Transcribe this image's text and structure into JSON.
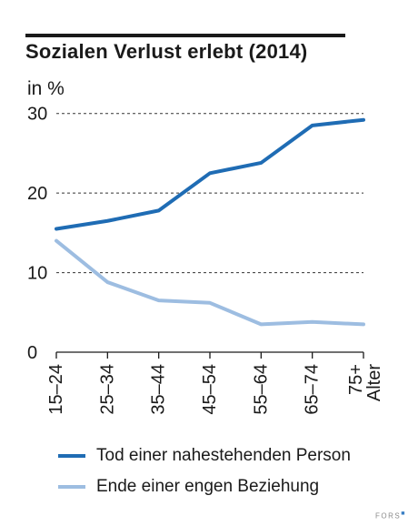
{
  "chart_data": {
    "type": "line",
    "title": "Sozialen Verlust erlebt (2014)",
    "unit_label": "in %",
    "categories": [
      "15–24",
      "25–34",
      "35–44",
      "45–54",
      "55–64",
      "65–74",
      "75+"
    ],
    "x_axis_extra_label": "Alter",
    "y_ticks": [
      0,
      10,
      20,
      30
    ],
    "ylim": [
      0,
      31
    ],
    "grid": "dashed horizontal at 10, 20, 30",
    "series": [
      {
        "name": "Tod einer nahestehenden Person",
        "color": "#1f6cb4",
        "values": [
          15.5,
          16.5,
          17.8,
          22.5,
          23.8,
          28.5,
          29.2
        ]
      },
      {
        "name": "Ende einer engen Beziehung",
        "color": "#9dbde1",
        "values": [
          14,
          8.8,
          6.5,
          6.2,
          3.5,
          3.8,
          3.5
        ]
      }
    ],
    "legend_position": "bottom"
  },
  "credit": "FORS"
}
